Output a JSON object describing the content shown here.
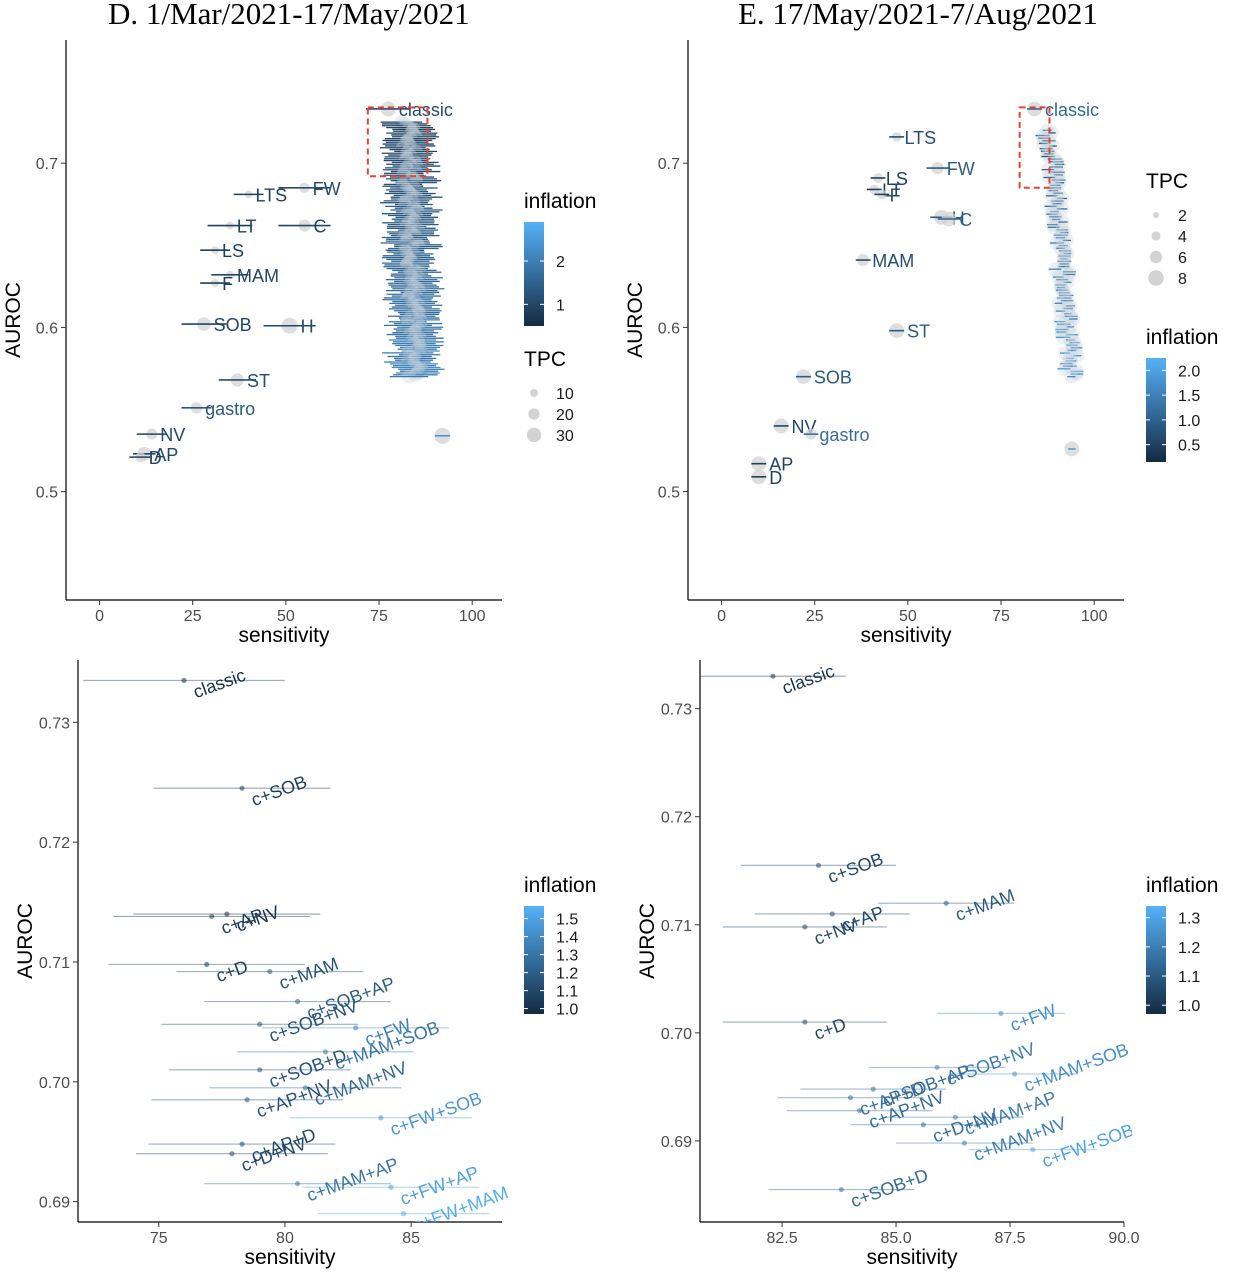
{
  "titles": {
    "d": "D. 1/Mar/2021-17/May/2021",
    "e": "E. 17/May/2021-7/Aug/2021"
  },
  "colors": {
    "low": "#132B43",
    "high": "#56B1F7",
    "bubble": "#d3d3d3",
    "highlight": "#e8432d"
  },
  "chart_data": [
    {
      "id": "D-overview",
      "type": "scatter",
      "xlabel": "sensitivity",
      "ylabel": "AUROC",
      "xlim": [
        -9,
        108
      ],
      "ylim": [
        0.434,
        0.775
      ],
      "xticks": [
        0,
        25,
        50,
        75,
        100
      ],
      "yticks": [
        0.5,
        0.6,
        0.7
      ],
      "ytick_labels": [
        "0.5",
        "0.6",
        "0.7"
      ],
      "legend": {
        "color_title": "inflation",
        "color_range": [
          0.5,
          2.9
        ],
        "color_ticks": [
          1,
          2
        ],
        "color_tick_labels": [
          "1",
          "2"
        ],
        "size_title": "TPC",
        "size_ticks": [
          "10",
          "20",
          "30"
        ]
      },
      "highlight_box": {
        "x": [
          72,
          88
        ],
        "y": [
          0.692,
          0.734
        ]
      },
      "cloud": {
        "x_center": 83,
        "y_range": [
          0.57,
          0.725
        ],
        "count": 140,
        "inflation_range": [
          0.9,
          2.3
        ]
      },
      "points": [
        {
          "label": "classic",
          "x": 77.5,
          "y": 0.733,
          "err": 6,
          "infl": 1.1,
          "tpc": 25
        },
        {
          "label": "LTS",
          "x": 40,
          "y": 0.681,
          "err": 4,
          "infl": 0.9,
          "tpc": 5
        },
        {
          "label": "FW",
          "x": 55,
          "y": 0.685,
          "err": 7,
          "infl": 1.1,
          "tpc": 12
        },
        {
          "label": "LT",
          "x": 35,
          "y": 0.662,
          "err": 6,
          "infl": 0.9,
          "tpc": 5
        },
        {
          "label": "C",
          "x": 55,
          "y": 0.662,
          "err": 7,
          "infl": 1.0,
          "tpc": 17
        },
        {
          "label": "LS",
          "x": 31,
          "y": 0.647,
          "err": 4,
          "infl": 0.9,
          "tpc": 5
        },
        {
          "label": "MAM",
          "x": 35,
          "y": 0.632,
          "err": 5,
          "infl": 1.0,
          "tpc": 6
        },
        {
          "label": "F",
          "x": 31,
          "y": 0.627,
          "err": 4,
          "infl": 0.9,
          "tpc": 6
        },
        {
          "label": "SOB",
          "x": 28,
          "y": 0.602,
          "err": 6,
          "infl": 1.0,
          "tpc": 21
        },
        {
          "label": "H",
          "x": 51,
          "y": 0.601,
          "err": 7,
          "infl": 1.0,
          "tpc": 28
        },
        {
          "label": "ST",
          "x": 37,
          "y": 0.568,
          "err": 5,
          "infl": 1.1,
          "tpc": 20
        },
        {
          "label": "gastro",
          "x": 26,
          "y": 0.551,
          "err": 4,
          "infl": 1.3,
          "tpc": 15
        },
        {
          "label": "NV",
          "x": 14,
          "y": 0.535,
          "err": 4,
          "infl": 1.0,
          "tpc": 14
        },
        {
          "label": "AP",
          "x": 12,
          "y": 0.523,
          "err": 3,
          "infl": 1.0,
          "tpc": 22
        },
        {
          "label": "D",
          "x": 11,
          "y": 0.521,
          "err": 3,
          "infl": 0.9,
          "tpc": 12
        },
        {
          "label": "",
          "x": 92,
          "y": 0.534,
          "err": 2,
          "infl": 2.4,
          "tpc": 28
        }
      ]
    },
    {
      "id": "E-overview",
      "type": "scatter",
      "xlabel": "sensitivity",
      "ylabel": "AUROC",
      "xlim": [
        -9,
        108
      ],
      "ylim": [
        0.434,
        0.775
      ],
      "xticks": [
        0,
        25,
        50,
        75,
        100
      ],
      "yticks": [
        0.5,
        0.6,
        0.7
      ],
      "ytick_labels": [
        "0.5",
        "0.6",
        "0.7"
      ],
      "legend": {
        "size_title": "TPC",
        "size_ticks": [
          "2",
          "4",
          "6",
          "8"
        ],
        "color_title": "inflation",
        "color_range": [
          0.15,
          2.25
        ],
        "color_ticks": [
          0.5,
          1,
          1.5,
          2
        ],
        "color_tick_labels": [
          "0.5",
          "1.0",
          "1.5",
          "2.0"
        ]
      },
      "highlight_box": {
        "x": [
          80,
          88
        ],
        "y": [
          0.685,
          0.734
        ]
      },
      "cloud": {
        "x_center": 88,
        "y_range": [
          0.57,
          0.72
        ],
        "count": 95,
        "inflation_range": [
          0.9,
          2.0
        ]
      },
      "points": [
        {
          "label": "classic",
          "x": 84,
          "y": 0.733,
          "err": 2,
          "infl": 1.1,
          "tpc": 6
        },
        {
          "label": "LTS",
          "x": 47,
          "y": 0.716,
          "err": 2,
          "infl": 0.7,
          "tpc": 2
        },
        {
          "label": "FW",
          "x": 58,
          "y": 0.697,
          "err": 3,
          "infl": 0.9,
          "tpc": 4
        },
        {
          "label": "LS",
          "x": 42,
          "y": 0.691,
          "err": 2,
          "infl": 0.5,
          "tpc": 2
        },
        {
          "label": "LT",
          "x": 41,
          "y": 0.684,
          "err": 2,
          "infl": 0.5,
          "tpc": 2
        },
        {
          "label": "F",
          "x": 43,
          "y": 0.681,
          "err": 2,
          "infl": 0.6,
          "tpc": 2
        },
        {
          "label": "H",
          "x": 59,
          "y": 0.667,
          "err": 3,
          "infl": 0.9,
          "tpc": 6
        },
        {
          "label": "C",
          "x": 61,
          "y": 0.666,
          "err": 3,
          "infl": 1.0,
          "tpc": 6
        },
        {
          "label": "MAM",
          "x": 38,
          "y": 0.641,
          "err": 2,
          "infl": 0.7,
          "tpc": 4
        },
        {
          "label": "ST",
          "x": 47,
          "y": 0.598,
          "err": 2,
          "infl": 0.9,
          "tpc": 6
        },
        {
          "label": "SOB",
          "x": 22,
          "y": 0.57,
          "err": 2,
          "infl": 0.9,
          "tpc": 6
        },
        {
          "label": "NV",
          "x": 16,
          "y": 0.54,
          "err": 2,
          "infl": 0.6,
          "tpc": 6
        },
        {
          "label": "gastro",
          "x": 24,
          "y": 0.535,
          "err": 2,
          "infl": 1.2,
          "tpc": 3
        },
        {
          "label": "AP",
          "x": 10,
          "y": 0.517,
          "err": 2,
          "infl": 0.5,
          "tpc": 6
        },
        {
          "label": "D",
          "x": 10,
          "y": 0.509,
          "err": 2,
          "infl": 0.5,
          "tpc": 6
        },
        {
          "label": "",
          "x": 94,
          "y": 0.526,
          "err": 1,
          "infl": 2.0,
          "tpc": 6
        }
      ]
    },
    {
      "id": "D-zoom",
      "type": "scatter",
      "xlabel": "sensitivity",
      "ylabel": "AUROC",
      "xlim": [
        71.8,
        88.6
      ],
      "ylim": [
        0.6883,
        0.7352
      ],
      "xticks": [
        75,
        80,
        85
      ],
      "yticks": [
        0.69,
        0.7,
        0.71,
        0.72,
        0.73
      ],
      "ytick_labels": [
        "0.69",
        "0.70",
        "0.71",
        "0.72",
        "0.73"
      ],
      "legend": {
        "color_title": "inflation",
        "color_range": [
          0.97,
          1.57
        ],
        "color_ticks": [
          1.0,
          1.1,
          1.2,
          1.3,
          1.4,
          1.5
        ],
        "color_tick_labels": [
          "1.0",
          "1.1",
          "1.2",
          "1.3",
          "1.4",
          "1.5"
        ]
      },
      "points": [
        {
          "label": "classic",
          "x": 76.0,
          "y": 0.7335,
          "err": 4.0,
          "infl": 1.0
        },
        {
          "label": "c+SOB",
          "x": 78.3,
          "y": 0.7245,
          "err": 3.5,
          "infl": 1.05
        },
        {
          "label": "c+NV",
          "x": 77.7,
          "y": 0.714,
          "err": 3.7,
          "infl": 1.0
        },
        {
          "label": "c+AP",
          "x": 77.1,
          "y": 0.7138,
          "err": 3.9,
          "infl": 1.05
        },
        {
          "label": "c+D",
          "x": 76.9,
          "y": 0.7098,
          "err": 3.9,
          "infl": 1.05
        },
        {
          "label": "c+MAM",
          "x": 79.4,
          "y": 0.7092,
          "err": 3.7,
          "infl": 1.15
        },
        {
          "label": "c+SOB+AP",
          "x": 80.5,
          "y": 0.7067,
          "err": 3.7,
          "infl": 1.2
        },
        {
          "label": "c+SOB+NV",
          "x": 79.0,
          "y": 0.7048,
          "err": 3.9,
          "infl": 1.15
        },
        {
          "label": "c+FW",
          "x": 82.8,
          "y": 0.7045,
          "err": 3.7,
          "infl": 1.35
        },
        {
          "label": "c+MAM+SOB",
          "x": 81.6,
          "y": 0.7025,
          "err": 3.5,
          "infl": 1.3
        },
        {
          "label": "c+SOB+D",
          "x": 79.0,
          "y": 0.701,
          "err": 3.6,
          "infl": 1.15
        },
        {
          "label": "c+MAM+NV",
          "x": 80.8,
          "y": 0.6995,
          "err": 3.8,
          "infl": 1.25
        },
        {
          "label": "c+AP+NV",
          "x": 78.5,
          "y": 0.6985,
          "err": 3.8,
          "infl": 1.15
        },
        {
          "label": "c+FW+SOB",
          "x": 83.8,
          "y": 0.697,
          "err": 3.6,
          "infl": 1.45
        },
        {
          "label": "c+AP+D",
          "x": 78.3,
          "y": 0.6948,
          "err": 3.7,
          "infl": 1.1
        },
        {
          "label": "c+D+NV",
          "x": 77.9,
          "y": 0.694,
          "err": 3.8,
          "infl": 1.1
        },
        {
          "label": "c+MAM+AP",
          "x": 80.5,
          "y": 0.6915,
          "err": 3.7,
          "infl": 1.3
        },
        {
          "label": "c+FW+AP",
          "x": 84.2,
          "y": 0.6912,
          "err": 3.5,
          "infl": 1.5
        },
        {
          "label": "c+FW+MAM",
          "x": 84.7,
          "y": 0.689,
          "err": 3.4,
          "infl": 1.55
        }
      ]
    },
    {
      "id": "E-zoom",
      "type": "scatter",
      "xlabel": "sensitivity",
      "ylabel": "AUROC",
      "xlim": [
        80.7,
        90.0
      ],
      "ylim": [
        0.6825,
        0.7345
      ],
      "xticks": [
        82.5,
        85.0,
        87.5,
        90.0
      ],
      "xtick_labels": [
        "82.5",
        "85.0",
        "87.5",
        "90.0"
      ],
      "yticks": [
        0.69,
        0.7,
        0.71,
        0.72,
        0.73
      ],
      "ytick_labels": [
        "0.69",
        "0.70",
        "0.71",
        "0.72",
        "0.73"
      ],
      "legend": {
        "color_title": "inflation",
        "color_range": [
          0.97,
          1.34
        ],
        "color_ticks": [
          1.0,
          1.1,
          1.2,
          1.3
        ],
        "color_tick_labels": [
          "1.0",
          "1.1",
          "1.2",
          "1.3"
        ]
      },
      "points": [
        {
          "label": "classic",
          "x": 82.3,
          "y": 0.733,
          "err": 1.6,
          "infl": 1.0
        },
        {
          "label": "c+SOB",
          "x": 83.3,
          "y": 0.7155,
          "err": 1.7,
          "infl": 1.05
        },
        {
          "label": "c+MAM",
          "x": 86.1,
          "y": 0.712,
          "err": 1.5,
          "infl": 1.1
        },
        {
          "label": "c+AP",
          "x": 83.6,
          "y": 0.711,
          "err": 1.7,
          "infl": 1.05
        },
        {
          "label": "c+NV",
          "x": 83.0,
          "y": 0.7098,
          "err": 1.8,
          "infl": 1.05
        },
        {
          "label": "c+FW",
          "x": 87.3,
          "y": 0.7018,
          "err": 1.4,
          "infl": 1.25
        },
        {
          "label": "c+D",
          "x": 83.0,
          "y": 0.701,
          "err": 1.8,
          "infl": 1.05
        },
        {
          "label": "c+SOB+NV",
          "x": 85.9,
          "y": 0.6968,
          "err": 1.5,
          "infl": 1.2
        },
        {
          "label": "c+MAM+SOB",
          "x": 87.6,
          "y": 0.6962,
          "err": 1.4,
          "infl": 1.25
        },
        {
          "label": "c+SOB+AP",
          "x": 84.5,
          "y": 0.6948,
          "err": 1.6,
          "infl": 1.15
        },
        {
          "label": "c+AP+D",
          "x": 84.0,
          "y": 0.694,
          "err": 1.6,
          "infl": 1.15
        },
        {
          "label": "c+AP+NV",
          "x": 84.2,
          "y": 0.6928,
          "err": 1.6,
          "infl": 1.15
        },
        {
          "label": "c+MAM+AP",
          "x": 86.3,
          "y": 0.6922,
          "err": 1.5,
          "infl": 1.2
        },
        {
          "label": "c+D+NV",
          "x": 85.6,
          "y": 0.6915,
          "err": 1.6,
          "infl": 1.15
        },
        {
          "label": "c+MAM+NV",
          "x": 86.5,
          "y": 0.6898,
          "err": 1.5,
          "infl": 1.2
        },
        {
          "label": "c+FW+SOB",
          "x": 88.0,
          "y": 0.6892,
          "err": 1.4,
          "infl": 1.3
        },
        {
          "label": "c+SOB+D",
          "x": 83.8,
          "y": 0.6855,
          "err": 1.6,
          "infl": 1.15
        }
      ]
    }
  ]
}
